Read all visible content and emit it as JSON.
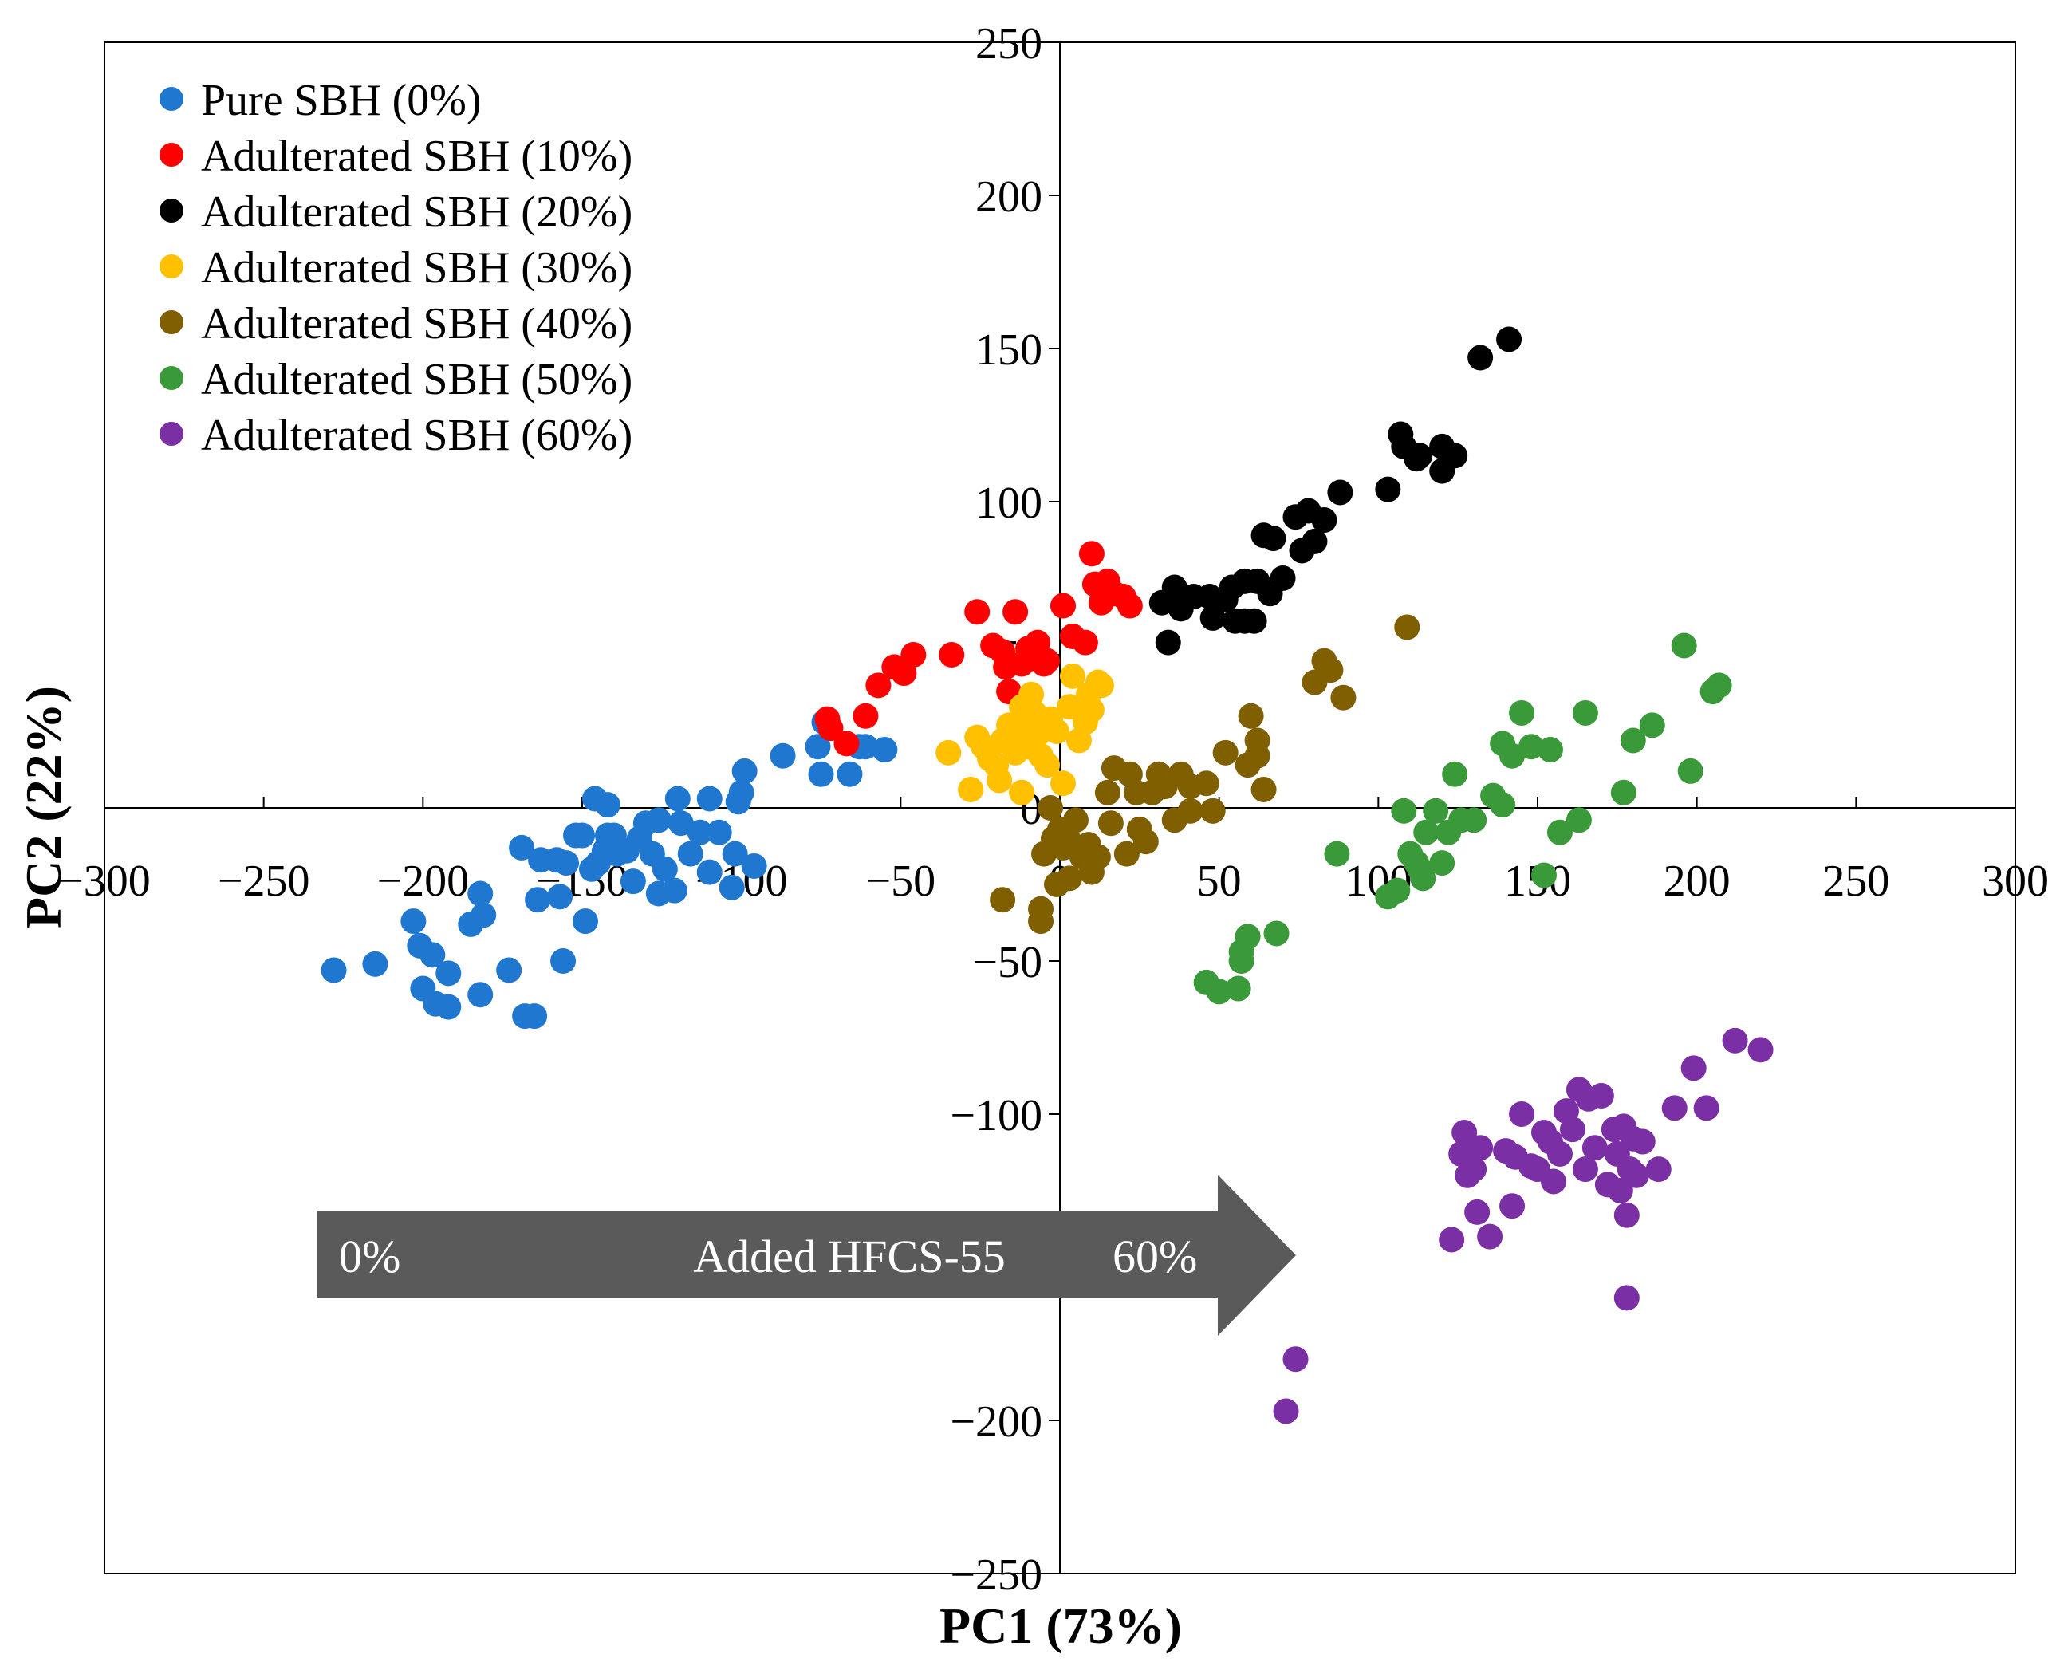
{
  "chart_data": {
    "type": "scatter",
    "title": "",
    "xlabel": "PC1 (73%)",
    "ylabel": "PC2 (22%)",
    "xlim": [
      -300,
      300
    ],
    "ylim": [
      -250,
      250
    ],
    "xticks": [
      -300,
      -250,
      -200,
      -150,
      -100,
      -50,
      0,
      50,
      100,
      150,
      200,
      250,
      300
    ],
    "yticks": [
      -250,
      -200,
      -100,
      -50,
      0,
      50,
      100,
      150,
      200,
      250
    ],
    "grid": false,
    "legend_position": "top-left",
    "annotation": {
      "start_label": "0%",
      "middle_label": "Added HFCS-55",
      "end_label": "60%"
    },
    "series": [
      {
        "name": "Pure SBH (0%)",
        "color": "#1F77D0",
        "points": [
          [
            -228,
            -53
          ],
          [
            -215,
            -51
          ],
          [
            -203,
            -37
          ],
          [
            -201,
            -45
          ],
          [
            -200,
            -59
          ],
          [
            -196,
            -64
          ],
          [
            -192,
            -65
          ],
          [
            -197,
            -48
          ],
          [
            -192,
            -54
          ],
          [
            -185,
            -38
          ],
          [
            -181,
            -35
          ],
          [
            -182,
            -61
          ],
          [
            -182,
            -28
          ],
          [
            -173,
            -53
          ],
          [
            -168,
            -68
          ],
          [
            -165,
            -68
          ],
          [
            -169,
            -13
          ],
          [
            -163,
            -17
          ],
          [
            -164,
            -30
          ],
          [
            -158,
            -17
          ],
          [
            -157,
            -29
          ],
          [
            -156,
            -50
          ],
          [
            -155,
            -18
          ],
          [
            -152,
            -9
          ],
          [
            -150,
            -9
          ],
          [
            -149,
            -37
          ],
          [
            -147,
            -20
          ],
          [
            -145,
            -18
          ],
          [
            -143,
            -14
          ],
          [
            -142,
            -9
          ],
          [
            -140,
            -9
          ],
          [
            -146,
            3
          ],
          [
            -142,
            1
          ],
          [
            -139,
            -15
          ],
          [
            -136,
            -14
          ],
          [
            -134,
            -24
          ],
          [
            -132,
            -10
          ],
          [
            -130,
            -5
          ],
          [
            -128,
            -15
          ],
          [
            -126,
            -4
          ],
          [
            -124,
            -20
          ],
          [
            -121,
            -27
          ],
          [
            -126,
            -28
          ],
          [
            -119,
            -5
          ],
          [
            -116,
            -15
          ],
          [
            -113,
            -8
          ],
          [
            -110,
            -21
          ],
          [
            -107,
            -8
          ],
          [
            -103,
            -26
          ],
          [
            -102,
            -15
          ],
          [
            -120,
            3
          ],
          [
            -110,
            3
          ],
          [
            -101,
            2
          ],
          [
            -100,
            5
          ],
          [
            -99,
            12
          ],
          [
            -96,
            -19
          ],
          [
            -87,
            17
          ],
          [
            -76,
            20
          ],
          [
            -75,
            11
          ],
          [
            -74,
            28
          ],
          [
            -66,
            11
          ],
          [
            -63,
            20
          ],
          [
            -61,
            20
          ],
          [
            -55,
            19
          ]
        ]
      },
      {
        "name": "Adulterated SBH (10%)",
        "color": "#FF0000",
        "points": [
          [
            -73,
            29
          ],
          [
            -72,
            26
          ],
          [
            -67,
            21
          ],
          [
            -61,
            30
          ],
          [
            -57,
            40
          ],
          [
            -52,
            46
          ],
          [
            -49,
            44
          ],
          [
            -46,
            50
          ],
          [
            -34,
            50
          ],
          [
            -26,
            64
          ],
          [
            -21,
            53
          ],
          [
            -18,
            51
          ],
          [
            -17,
            46
          ],
          [
            -16,
            38
          ],
          [
            -14,
            64
          ],
          [
            -12,
            47
          ],
          [
            -10,
            52
          ],
          [
            -7,
            54
          ],
          [
            -5,
            47
          ],
          [
            -4,
            48
          ],
          [
            1,
            66
          ],
          [
            4,
            56
          ],
          [
            8,
            54
          ],
          [
            10,
            83
          ],
          [
            11,
            73
          ],
          [
            13,
            67
          ],
          [
            15,
            74
          ],
          [
            17,
            70
          ],
          [
            20,
            69
          ],
          [
            22,
            66
          ]
        ]
      },
      {
        "name": "Adulterated SBH (20%)",
        "color": "#000000",
        "points": [
          [
            32,
            67
          ],
          [
            34,
            54
          ],
          [
            36,
            72
          ],
          [
            38,
            65
          ],
          [
            42,
            69
          ],
          [
            47,
            69
          ],
          [
            48,
            62
          ],
          [
            52,
            68
          ],
          [
            54,
            72
          ],
          [
            55,
            61
          ],
          [
            58,
            74
          ],
          [
            58,
            61
          ],
          [
            61,
            61
          ],
          [
            62,
            74
          ],
          [
            64,
            89
          ],
          [
            66,
            70
          ],
          [
            67,
            88
          ],
          [
            70,
            75
          ],
          [
            74,
            95
          ],
          [
            76,
            84
          ],
          [
            78,
            97
          ],
          [
            80,
            87
          ],
          [
            83,
            94
          ],
          [
            88,
            103
          ],
          [
            103,
            104
          ],
          [
            107,
            122
          ],
          [
            108,
            118
          ],
          [
            112,
            114
          ],
          [
            113,
            115
          ],
          [
            120,
            118
          ],
          [
            120,
            110
          ],
          [
            124,
            115
          ],
          [
            132,
            147
          ],
          [
            141,
            153
          ]
        ]
      },
      {
        "name": "Adulterated SBH (30%)",
        "color": "#FFC000",
        "points": [
          [
            -35,
            18
          ],
          [
            -28,
            6
          ],
          [
            -26,
            23
          ],
          [
            -24,
            20
          ],
          [
            -22,
            16
          ],
          [
            -20,
            14
          ],
          [
            -19,
            9
          ],
          [
            -18,
            22
          ],
          [
            -16,
            27
          ],
          [
            -15,
            24
          ],
          [
            -14,
            18
          ],
          [
            -13,
            27
          ],
          [
            -12,
            33
          ],
          [
            -12,
            5
          ],
          [
            -10,
            20
          ],
          [
            -9,
            37
          ],
          [
            -8,
            31
          ],
          [
            -7,
            24
          ],
          [
            -6,
            17
          ],
          [
            -5,
            26
          ],
          [
            -4,
            14
          ],
          [
            -3,
            29
          ],
          [
            -1,
            25
          ],
          [
            1,
            8
          ],
          [
            3,
            33
          ],
          [
            4,
            43
          ],
          [
            6,
            22
          ],
          [
            8,
            28
          ],
          [
            9,
            37
          ],
          [
            10,
            32
          ],
          [
            12,
            41
          ],
          [
            13,
            40
          ]
        ]
      },
      {
        "name": "Adulterated SBH (40%)",
        "color": "#7F5F00",
        "points": [
          [
            -18,
            -30
          ],
          [
            -6,
            -33
          ],
          [
            -6,
            -37
          ],
          [
            -5,
            -15
          ],
          [
            -3,
            0
          ],
          [
            -2,
            -10
          ],
          [
            -1,
            -25
          ],
          [
            0,
            -7
          ],
          [
            1,
            -13
          ],
          [
            3,
            -11
          ],
          [
            3,
            -23
          ],
          [
            5,
            -4
          ],
          [
            7,
            -16
          ],
          [
            9,
            -12
          ],
          [
            10,
            -21
          ],
          [
            12,
            -16
          ],
          [
            15,
            5
          ],
          [
            16,
            -5
          ],
          [
            17,
            13
          ],
          [
            21,
            -15
          ],
          [
            22,
            11
          ],
          [
            24,
            5
          ],
          [
            25,
            -7
          ],
          [
            27,
            -11
          ],
          [
            29,
            5
          ],
          [
            31,
            11
          ],
          [
            33,
            7
          ],
          [
            36,
            -4
          ],
          [
            38,
            11
          ],
          [
            41,
            7
          ],
          [
            41,
            -1
          ],
          [
            46,
            8
          ],
          [
            48,
            -1
          ],
          [
            52,
            18
          ],
          [
            59,
            14
          ],
          [
            60,
            30
          ],
          [
            62,
            22
          ],
          [
            62,
            17
          ],
          [
            64,
            6
          ],
          [
            80,
            41
          ],
          [
            83,
            48
          ],
          [
            85,
            45
          ],
          [
            89,
            36
          ],
          [
            109,
            59
          ]
        ]
      },
      {
        "name": "Adulterated SBH (50%)",
        "color": "#3A9A3A",
        "points": [
          [
            46,
            -57
          ],
          [
            50,
            -60
          ],
          [
            56,
            -59
          ],
          [
            57,
            -50
          ],
          [
            57,
            -47
          ],
          [
            59,
            -42
          ],
          [
            68,
            -41
          ],
          [
            87,
            -15
          ],
          [
            103,
            -29
          ],
          [
            106,
            -27
          ],
          [
            108,
            -1
          ],
          [
            110,
            -15
          ],
          [
            112,
            -18
          ],
          [
            113,
            -20
          ],
          [
            114,
            -23
          ],
          [
            115,
            -8
          ],
          [
            118,
            -1
          ],
          [
            120,
            -18
          ],
          [
            122,
            -8
          ],
          [
            124,
            11
          ],
          [
            126,
            -4
          ],
          [
            130,
            -4
          ],
          [
            136,
            4
          ],
          [
            139,
            21
          ],
          [
            139,
            1
          ],
          [
            142,
            17
          ],
          [
            145,
            31
          ],
          [
            148,
            20
          ],
          [
            152,
            -22
          ],
          [
            154,
            19
          ],
          [
            157,
            -8
          ],
          [
            163,
            -4
          ],
          [
            165,
            31
          ],
          [
            177,
            5
          ],
          [
            180,
            22
          ],
          [
            186,
            27
          ],
          [
            196,
            53
          ],
          [
            198,
            12
          ],
          [
            205,
            38
          ],
          [
            207,
            40
          ]
        ]
      },
      {
        "name": "Adulterated SBH (60%)",
        "color": "#7B2FA5",
        "points": [
          [
            71,
            -197
          ],
          [
            74,
            -180
          ],
          [
            123,
            -141
          ],
          [
            126,
            -113
          ],
          [
            127,
            -106
          ],
          [
            128,
            -120
          ],
          [
            130,
            -118
          ],
          [
            131,
            -132
          ],
          [
            132,
            -111
          ],
          [
            135,
            -140
          ],
          [
            140,
            -112
          ],
          [
            142,
            -130
          ],
          [
            143,
            -114
          ],
          [
            145,
            -100
          ],
          [
            148,
            -117
          ],
          [
            150,
            -118
          ],
          [
            152,
            -106
          ],
          [
            154,
            -109
          ],
          [
            155,
            -122
          ],
          [
            157,
            -113
          ],
          [
            159,
            -99
          ],
          [
            161,
            -105
          ],
          [
            163,
            -92
          ],
          [
            165,
            -118
          ],
          [
            166,
            -95
          ],
          [
            168,
            -111
          ],
          [
            170,
            -94
          ],
          [
            172,
            -123
          ],
          [
            174,
            -105
          ],
          [
            175,
            -113
          ],
          [
            176,
            -125
          ],
          [
            177,
            -104
          ],
          [
            178,
            -133
          ],
          [
            178,
            -160
          ],
          [
            179,
            -118
          ],
          [
            180,
            -108
          ],
          [
            181,
            -120
          ],
          [
            183,
            -109
          ],
          [
            188,
            -118
          ],
          [
            193,
            -98
          ],
          [
            199,
            -85
          ],
          [
            203,
            -98
          ],
          [
            212,
            -76
          ],
          [
            220,
            -79
          ]
        ]
      }
    ]
  }
}
